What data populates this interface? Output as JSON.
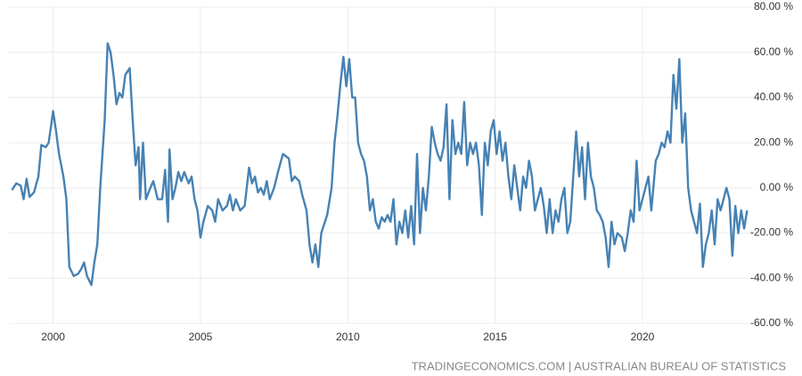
{
  "chart_data": {
    "type": "line",
    "source": "TRADINGECONOMICS.COM | AUSTRALIAN BUREAU OF STATISTICS",
    "xlim": [
      1998.5,
      2023.75
    ],
    "ylim": [
      -60,
      80
    ],
    "xticks": [
      2000,
      2005,
      2010,
      2015,
      2020
    ],
    "yticks": [
      {
        "value": 80,
        "label": "80.00 %"
      },
      {
        "value": 60,
        "label": "60.00 %"
      },
      {
        "value": 40,
        "label": "40.00 %"
      },
      {
        "value": 20,
        "label": "20.00 %"
      },
      {
        "value": 0,
        "label": "0.00 %"
      },
      {
        "value": -20,
        "label": "-20.00 %"
      },
      {
        "value": -40,
        "label": "-40.00 %"
      },
      {
        "value": -60,
        "label": "-60.00 %"
      }
    ],
    "grid": true,
    "color": "#4682b4",
    "x": [
      1998.6,
      1998.75,
      1998.9,
      1999.0,
      1999.1,
      1999.2,
      1999.35,
      1999.5,
      1999.6,
      1999.75,
      1999.85,
      2000.0,
      2000.1,
      2000.2,
      2000.35,
      2000.45,
      2000.55,
      2000.7,
      2000.85,
      2000.95,
      2001.05,
      2001.15,
      2001.3,
      2001.4,
      2001.5,
      2001.6,
      2001.75,
      2001.85,
      2001.95,
      2002.05,
      2002.15,
      2002.25,
      2002.35,
      2002.45,
      2002.6,
      2002.7,
      2002.8,
      2002.9,
      2002.95,
      2003.05,
      2003.15,
      2003.3,
      2003.4,
      2003.55,
      2003.7,
      2003.8,
      2003.9,
      2003.95,
      2004.05,
      2004.15,
      2004.25,
      2004.35,
      2004.45,
      2004.6,
      2004.7,
      2004.8,
      2004.9,
      2005.0,
      2005.1,
      2005.25,
      2005.4,
      2005.5,
      2005.6,
      2005.75,
      2005.9,
      2006.0,
      2006.1,
      2006.2,
      2006.35,
      2006.5,
      2006.65,
      2006.75,
      2006.85,
      2006.95,
      2007.05,
      2007.15,
      2007.25,
      2007.35,
      2007.5,
      2007.65,
      2007.8,
      2008.0,
      2008.1,
      2008.2,
      2008.35,
      2008.45,
      2008.6,
      2008.7,
      2008.8,
      2008.9,
      2009.0,
      2009.1,
      2009.3,
      2009.45,
      2009.55,
      2009.65,
      2009.75,
      2009.85,
      2009.95,
      2010.05,
      2010.15,
      2010.25,
      2010.35,
      2010.45,
      2010.55,
      2010.65,
      2010.75,
      2010.85,
      2010.95,
      2011.05,
      2011.15,
      2011.25,
      2011.35,
      2011.45,
      2011.55,
      2011.65,
      2011.75,
      2011.85,
      2011.95,
      2012.05,
      2012.15,
      2012.25,
      2012.35,
      2012.45,
      2012.55,
      2012.65,
      2012.75,
      2012.85,
      2012.95,
      2013.05,
      2013.15,
      2013.25,
      2013.35,
      2013.45,
      2013.55,
      2013.65,
      2013.75,
      2013.85,
      2013.95,
      2014.05,
      2014.15,
      2014.25,
      2014.35,
      2014.45,
      2014.55,
      2014.65,
      2014.75,
      2014.85,
      2014.95,
      2015.05,
      2015.15,
      2015.25,
      2015.35,
      2015.45,
      2015.55,
      2015.65,
      2015.75,
      2015.85,
      2015.95,
      2016.05,
      2016.15,
      2016.25,
      2016.35,
      2016.45,
      2016.55,
      2016.65,
      2016.75,
      2016.85,
      2016.95,
      2017.05,
      2017.15,
      2017.25,
      2017.35,
      2017.45,
      2017.55,
      2017.65,
      2017.75,
      2017.85,
      2017.95,
      2018.05,
      2018.15,
      2018.25,
      2018.35,
      2018.45,
      2018.55,
      2018.65,
      2018.75,
      2018.85,
      2018.95,
      2019.05,
      2019.15,
      2019.3,
      2019.4,
      2019.5,
      2019.6,
      2019.7,
      2019.8,
      2019.9,
      2020.0,
      2020.1,
      2020.2,
      2020.3,
      2020.45,
      2020.55,
      2020.65,
      2020.75,
      2020.85,
      2020.95,
      2021.05,
      2021.15,
      2021.25,
      2021.35,
      2021.45,
      2021.55,
      2021.65,
      2021.75,
      2021.85,
      2021.95,
      2022.05,
      2022.15,
      2022.25,
      2022.35,
      2022.45,
      2022.55,
      2022.65,
      2022.75,
      2022.85,
      2022.95,
      2023.05,
      2023.15,
      2023.25,
      2023.35,
      2023.45,
      2023.55
    ],
    "values": [
      -1,
      2,
      1,
      -5,
      4,
      -4,
      -2,
      5,
      19,
      18,
      20,
      34,
      25,
      15,
      5,
      -5,
      -35,
      -39,
      -38,
      -36,
      -33,
      -39,
      -43,
      -33,
      -25,
      0,
      30,
      64,
      60,
      50,
      37,
      42,
      40,
      50,
      53,
      30,
      10,
      18,
      -5,
      20,
      -5,
      0,
      3,
      -5,
      -5,
      8,
      -15,
      17,
      -5,
      0,
      7,
      3,
      7,
      2,
      5,
      -5,
      -10,
      -22,
      -15,
      -8,
      -10,
      -15,
      -5,
      -10,
      -8,
      -3,
      -10,
      -5,
      -10,
      -8,
      9,
      2,
      5,
      -2,
      0,
      -3,
      3,
      -5,
      0,
      8,
      15,
      13,
      3,
      5,
      3,
      -3,
      -10,
      -25,
      -33,
      -25,
      -35,
      -20,
      -12,
      0,
      20,
      32,
      46,
      58,
      45,
      57,
      40,
      40,
      20,
      15,
      12,
      5,
      -10,
      -5,
      -15,
      -18,
      -13,
      -15,
      -12,
      -15,
      -5,
      -25,
      -15,
      -20,
      -10,
      -22,
      -8,
      -25,
      15,
      -20,
      0,
      -10,
      5,
      27,
      20,
      15,
      12,
      18,
      37,
      -5,
      30,
      15,
      20,
      15,
      38,
      10,
      20,
      15,
      20,
      10,
      -12,
      20,
      10,
      25,
      30,
      15,
      25,
      12,
      20,
      5,
      -5,
      10,
      0,
      -10,
      5,
      0,
      12,
      5,
      -10,
      -5,
      0,
      -8,
      -20,
      -5,
      -20,
      -10,
      -15,
      -5,
      0,
      -20,
      -15,
      5,
      25,
      5,
      18,
      -5,
      20,
      5,
      0,
      -10,
      -12,
      -15,
      -22,
      -35,
      -15,
      -25,
      -20,
      -22,
      -28,
      -20,
      -10,
      -15,
      12,
      -10,
      -5,
      0,
      5,
      -10,
      12,
      15,
      20,
      18,
      25,
      20,
      50,
      35,
      57,
      20,
      33,
      0,
      -10,
      -15,
      -20,
      -7,
      -35,
      -25,
      -20,
      -10,
      -25,
      -5,
      -10,
      -5,
      0,
      -5,
      -30,
      -8,
      -20,
      -10,
      -18,
      -10
    ]
  }
}
